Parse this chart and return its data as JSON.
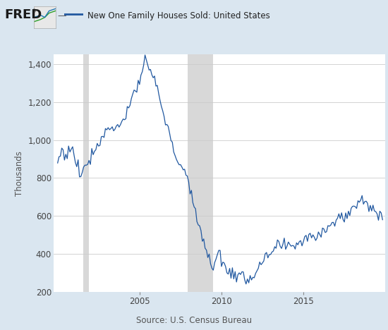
{
  "title": "New One Family Houses Sold: United States",
  "ylabel": "Thousands",
  "source": "Source: U.S. Census Bureau",
  "line_color": "#2158a0",
  "background_color": "#dae6f0",
  "plot_background_color": "#ffffff",
  "grid_color": "#cccccc",
  "ylim": [
    200,
    1450
  ],
  "xlim": [
    1999.75,
    2020.0
  ],
  "yticks": [
    200,
    400,
    600,
    800,
    1000,
    1200,
    1400
  ],
  "xticks": [
    2005,
    2010,
    2015
  ],
  "recession_bands": [
    {
      "start": 2001.58,
      "end": 2001.92
    },
    {
      "start": 2007.92,
      "end": 2009.5
    }
  ],
  "anchors": [
    [
      2000.0,
      875
    ],
    [
      2000.25,
      950
    ],
    [
      2000.5,
      920
    ],
    [
      2000.75,
      950
    ],
    [
      2001.0,
      940
    ],
    [
      2001.08,
      900
    ],
    [
      2001.17,
      870
    ],
    [
      2001.25,
      865
    ],
    [
      2001.33,
      830
    ],
    [
      2001.42,
      810
    ],
    [
      2001.5,
      830
    ],
    [
      2001.58,
      860
    ],
    [
      2001.67,
      870
    ],
    [
      2001.75,
      880
    ],
    [
      2001.92,
      900
    ],
    [
      2002.0,
      910
    ],
    [
      2002.25,
      950
    ],
    [
      2002.5,
      990
    ],
    [
      2002.75,
      1020
    ],
    [
      2003.0,
      1050
    ],
    [
      2003.25,
      1080
    ],
    [
      2003.5,
      1060
    ],
    [
      2003.75,
      1070
    ],
    [
      2004.0,
      1110
    ],
    [
      2004.25,
      1160
    ],
    [
      2004.5,
      1210
    ],
    [
      2004.75,
      1260
    ],
    [
      2005.0,
      1310
    ],
    [
      2005.17,
      1370
    ],
    [
      2005.33,
      1395
    ],
    [
      2005.5,
      1385
    ],
    [
      2005.67,
      1360
    ],
    [
      2005.83,
      1330
    ],
    [
      2006.0,
      1290
    ],
    [
      2006.17,
      1240
    ],
    [
      2006.33,
      1180
    ],
    [
      2006.5,
      1120
    ],
    [
      2006.67,
      1070
    ],
    [
      2006.83,
      1020
    ],
    [
      2007.0,
      970
    ],
    [
      2007.17,
      930
    ],
    [
      2007.33,
      900
    ],
    [
      2007.5,
      870
    ],
    [
      2007.67,
      850
    ],
    [
      2007.83,
      820
    ],
    [
      2007.92,
      790
    ],
    [
      2008.0,
      750
    ],
    [
      2008.17,
      700
    ],
    [
      2008.33,
      650
    ],
    [
      2008.5,
      600
    ],
    [
      2008.67,
      550
    ],
    [
      2008.83,
      500
    ],
    [
      2009.0,
      440
    ],
    [
      2009.17,
      390
    ],
    [
      2009.33,
      365
    ],
    [
      2009.42,
      340
    ],
    [
      2009.5,
      350
    ],
    [
      2009.67,
      360
    ],
    [
      2009.75,
      370
    ],
    [
      2009.83,
      420
    ],
    [
      2009.92,
      410
    ],
    [
      2010.0,
      350
    ],
    [
      2010.17,
      340
    ],
    [
      2010.33,
      320
    ],
    [
      2010.5,
      310
    ],
    [
      2010.67,
      300
    ],
    [
      2010.83,
      295
    ],
    [
      2011.0,
      285
    ],
    [
      2011.17,
      275
    ],
    [
      2011.5,
      270
    ],
    [
      2011.75,
      280
    ],
    [
      2012.0,
      295
    ],
    [
      2012.25,
      320
    ],
    [
      2012.5,
      350
    ],
    [
      2012.75,
      375
    ],
    [
      2013.0,
      400
    ],
    [
      2013.25,
      420
    ],
    [
      2013.5,
      445
    ],
    [
      2013.75,
      440
    ],
    [
      2014.0,
      430
    ],
    [
      2014.25,
      440
    ],
    [
      2014.5,
      455
    ],
    [
      2014.75,
      460
    ],
    [
      2015.0,
      475
    ],
    [
      2015.25,
      490
    ],
    [
      2015.5,
      505
    ],
    [
      2015.75,
      490
    ],
    [
      2016.0,
      510
    ],
    [
      2016.25,
      530
    ],
    [
      2016.5,
      555
    ],
    [
      2016.75,
      560
    ],
    [
      2017.0,
      575
    ],
    [
      2017.25,
      590
    ],
    [
      2017.5,
      600
    ],
    [
      2017.75,
      610
    ],
    [
      2018.0,
      640
    ],
    [
      2018.25,
      665
    ],
    [
      2018.5,
      690
    ],
    [
      2018.67,
      700
    ],
    [
      2018.83,
      670
    ],
    [
      2019.0,
      650
    ],
    [
      2019.25,
      620
    ],
    [
      2019.5,
      600
    ],
    [
      2019.67,
      620
    ],
    [
      2019.75,
      615
    ]
  ],
  "noise_std": 18,
  "noise_seed": 77
}
